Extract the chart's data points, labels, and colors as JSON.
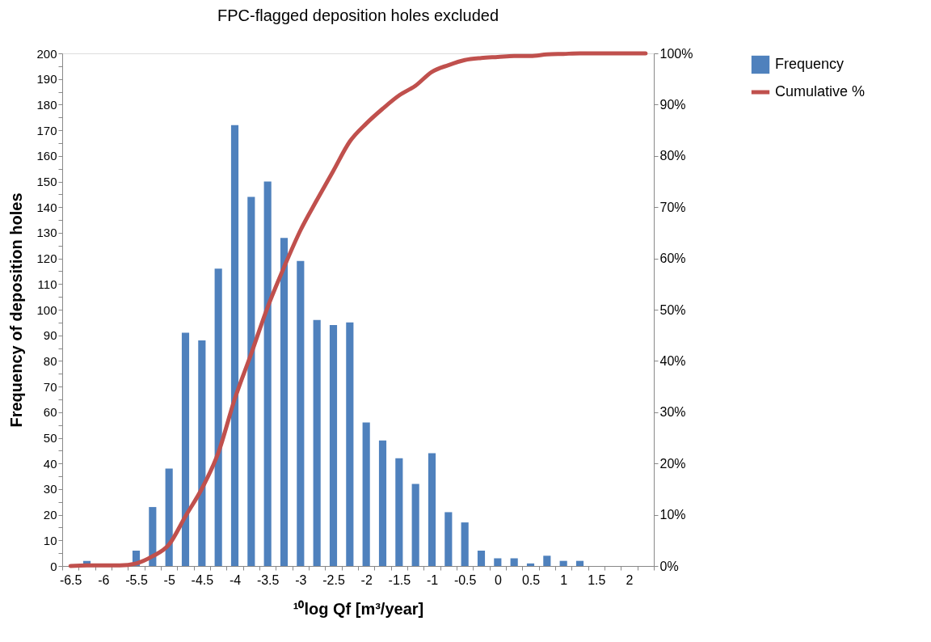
{
  "chart_data": {
    "type": "bar",
    "title": "FPC-flagged deposition holes excluded",
    "xlabel": "¹⁰log Qf [m³/year]",
    "ylabel": "Frequency of deposition holes",
    "categories": [
      "-6.5",
      null,
      "-6",
      null,
      "-5.5",
      null,
      "-5",
      null,
      "-4.5",
      null,
      "-4",
      null,
      "-3.5",
      null,
      "-3",
      null,
      "-2.5",
      null,
      "-2",
      null,
      "-1.5",
      null,
      "-1",
      null,
      "-0.5",
      null,
      "0",
      null,
      "0.5",
      null,
      "1",
      null,
      "1.5",
      null,
      "2",
      null
    ],
    "series": [
      {
        "name": "Frequency",
        "color": "#4f81bd",
        "values": [
          0,
          2,
          0,
          0,
          6,
          23,
          38,
          91,
          88,
          116,
          172,
          144,
          150,
          128,
          119,
          96,
          94,
          95,
          56,
          49,
          42,
          32,
          44,
          21,
          17,
          6,
          3,
          3,
          1,
          4,
          2,
          2,
          0,
          0,
          0,
          0
        ]
      },
      {
        "name": "Cumulative %",
        "type": "line",
        "axis": "y2",
        "color": "#c0504d",
        "values": [
          0,
          0.1,
          0.1,
          0.1,
          0.5,
          1.9,
          4.2,
          9.7,
          15.1,
          22.1,
          32.6,
          41.4,
          50.5,
          58.3,
          65.5,
          71.4,
          77.1,
          82.8,
          86.3,
          89.2,
          91.8,
          93.7,
          96.4,
          97.7,
          98.7,
          99.1,
          99.3,
          99.5,
          99.5,
          99.8,
          99.9,
          100,
          100,
          100,
          100,
          100
        ]
      }
    ],
    "ylim": [
      0,
      200
    ],
    "yticks": [
      0,
      {
        "value": 5,
        "label": null
      },
      10,
      {
        "value": 15,
        "label": null
      },
      20,
      {
        "value": 25,
        "label": null
      },
      30,
      {
        "value": 35,
        "label": null
      },
      40,
      {
        "value": 45,
        "label": null
      },
      50,
      {
        "value": 55,
        "label": null
      },
      60,
      {
        "value": 65,
        "label": null
      },
      70,
      {
        "value": 75,
        "label": null
      },
      80,
      {
        "value": 85,
        "label": null
      },
      90,
      {
        "value": 95,
        "label": null
      },
      100,
      {
        "value": 105,
        "label": null
      },
      110,
      {
        "value": 115,
        "label": null
      },
      120,
      {
        "value": 125,
        "label": null
      },
      130,
      {
        "value": 135,
        "label": null
      },
      140,
      {
        "value": 145,
        "label": null
      },
      150,
      {
        "value": 155,
        "label": null
      },
      160,
      {
        "value": 165,
        "label": null
      },
      170,
      {
        "value": 175,
        "label": null
      },
      180,
      {
        "value": 185,
        "label": null
      },
      190,
      {
        "value": 195,
        "label": null
      },
      200
    ],
    "y2lim": [
      0,
      100
    ],
    "y2ticks": [
      {
        "value": 0,
        "label": "0%"
      },
      {
        "value": 10,
        "label": "10%"
      },
      {
        "value": 20,
        "label": "20%"
      },
      {
        "value": 30,
        "label": "30%"
      },
      {
        "value": 40,
        "label": "40%"
      },
      {
        "value": 50,
        "label": "50%"
      },
      {
        "value": 60,
        "label": "60%"
      },
      {
        "value": 70,
        "label": "70%"
      },
      {
        "value": 80,
        "label": "80%"
      },
      {
        "value": 90,
        "label": "90%"
      },
      {
        "value": 100,
        "label": "100%"
      }
    ],
    "grid": false,
    "legend": "right"
  }
}
